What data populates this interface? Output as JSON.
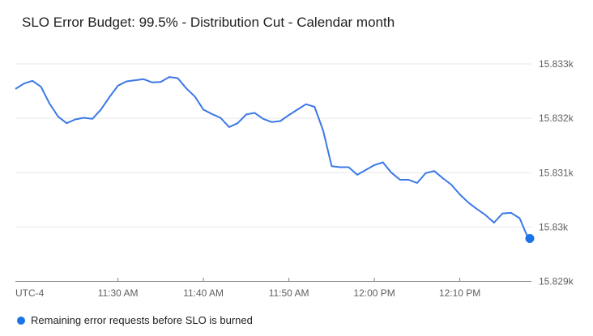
{
  "title": "SLO Error Budget: 99.5% - Distribution Cut - Calendar month",
  "legend": {
    "label": "Remaining error requests before SLO is burned",
    "dot_color": "#1a73e8"
  },
  "colors": {
    "line": "#3b78e7",
    "endpoint_dot": "#1a73e8",
    "grid": "#e7e7e7",
    "axis": "#808080",
    "axis_text": "#616161",
    "title_text": "#212121",
    "background": "#ffffff"
  },
  "chart_data": {
    "type": "line",
    "title": "SLO Error Budget: 99.5% - Distribution Cut - Calendar month",
    "x_axis_note": "UTC-4",
    "x_ticks": [
      {
        "label": "11:30 AM",
        "index": 12
      },
      {
        "label": "11:40 AM",
        "index": 22
      },
      {
        "label": "11:50 AM",
        "index": 32
      },
      {
        "label": "12:00 PM",
        "index": 42
      },
      {
        "label": "12:10 PM",
        "index": 52
      }
    ],
    "y_ticks": [
      {
        "label": "15.833k",
        "value": 15833
      },
      {
        "label": "15.832k",
        "value": 15832
      },
      {
        "label": "15.831k",
        "value": 15831
      },
      {
        "label": "15.83k",
        "value": 15830
      },
      {
        "label": "15.829k",
        "value": 15829
      }
    ],
    "ylim": [
      15829,
      15833
    ],
    "interval_minutes": 1,
    "grid": true,
    "legend_position": "bottom-left",
    "series": [
      {
        "name": "Remaining error requests before SLO is burned",
        "values": [
          15832.54,
          15832.64,
          15832.69,
          15832.58,
          15832.27,
          15832.03,
          15831.91,
          15831.98,
          15832.01,
          15831.99,
          15832.16,
          15832.39,
          15832.6,
          15832.68,
          15832.7,
          15832.72,
          15832.66,
          15832.67,
          15832.76,
          15832.74,
          15832.55,
          15832.4,
          15832.16,
          15832.08,
          15832.01,
          15831.84,
          15831.91,
          15832.07,
          15832.1,
          15831.99,
          15831.93,
          15831.95,
          15832.06,
          15832.16,
          15832.26,
          15832.21,
          15831.78,
          15831.12,
          15831.1,
          15831.1,
          15830.96,
          15831.05,
          15831.14,
          15831.19,
          15831.0,
          15830.87,
          15830.87,
          15830.81,
          15830.99,
          15831.03,
          15830.9,
          15830.78,
          15830.6,
          15830.45,
          15830.33,
          15830.22,
          15830.08,
          15830.25,
          15830.26,
          15830.16,
          15829.79
        ]
      }
    ]
  }
}
